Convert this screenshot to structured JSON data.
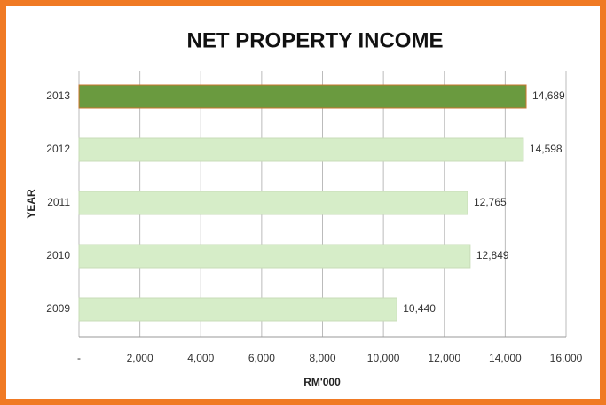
{
  "chart_data": {
    "type": "barh",
    "title": "NET PROPERTY INCOME",
    "x_label": "RM'000",
    "y_label": "YEAR",
    "categories": [
      "2013",
      "2012",
      "2011",
      "2010",
      "2009"
    ],
    "values": [
      14689,
      14598,
      12765,
      12849,
      10440
    ],
    "value_labels": [
      "14,689",
      "14,598",
      "12,765",
      "12,849",
      "10,440"
    ],
    "colors": [
      "#6a9a3f",
      "#d6edc8",
      "#d6edc8",
      "#d6edc8",
      "#d6edc8"
    ],
    "xlim": [
      0,
      16000
    ],
    "xticks": [
      {
        "value": 0,
        "label": "-"
      },
      {
        "value": 2000,
        "label": "2,000"
      },
      {
        "value": 4000,
        "label": "4,000"
      },
      {
        "value": 6000,
        "label": "6,000"
      },
      {
        "value": 8000,
        "label": "8,000"
      },
      {
        "value": 10000,
        "label": "10,000"
      },
      {
        "value": 12000,
        "label": "12,000"
      },
      {
        "value": 14000,
        "label": "14,000"
      },
      {
        "value": 16000,
        "label": "16,000"
      }
    ],
    "grid": true
  }
}
